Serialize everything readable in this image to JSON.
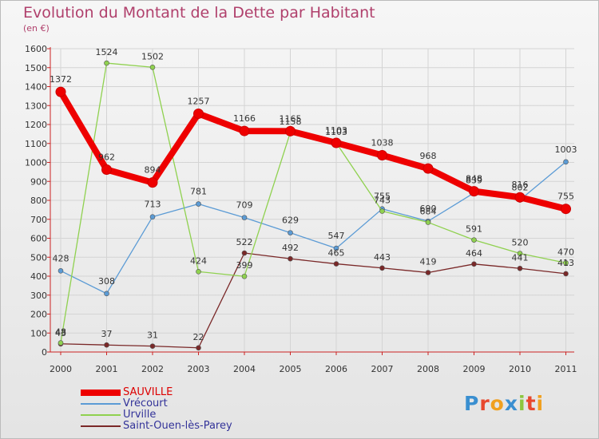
{
  "title": "Evolution du Montant de la Dette par Habitant",
  "subtitle": "(en €)",
  "logo": {
    "letters": [
      "P",
      "r",
      "o",
      "x",
      "i",
      "t",
      "i"
    ],
    "colors": [
      "#3a8fd0",
      "#e8482e",
      "#f0a020",
      "#3a8fd0",
      "#8cc63f",
      "#e8482e",
      "#f0a020"
    ]
  },
  "chart_data": {
    "type": "line",
    "title": "Evolution du Montant de la Dette par Habitant",
    "ylabel": "(en €)",
    "xlabel": "",
    "ylim": [
      0,
      1600
    ],
    "y_ticks": [
      0,
      100,
      200,
      300,
      400,
      500,
      600,
      700,
      800,
      900,
      1000,
      1100,
      1200,
      1300,
      1400,
      1500,
      1600
    ],
    "grid": true,
    "legend": "bottom-left",
    "x": [
      "2000",
      "2001",
      "2002",
      "2003",
      "2004",
      "2005",
      "2006",
      "2007",
      "2008",
      "2009",
      "2010",
      "2011"
    ],
    "series": [
      {
        "name": "SAUVILLE",
        "color": "#ee0000",
        "values": [
          1372,
          962,
          894,
          1257,
          1166,
          1165,
          1103,
          1038,
          968,
          848,
          816,
          755
        ]
      },
      {
        "name": "Vrécourt",
        "color": "#5b9bd5",
        "values": [
          428,
          308,
          713,
          781,
          709,
          629,
          547,
          755,
          690,
          839,
          802,
          1003
        ]
      },
      {
        "name": "Urville",
        "color": "#8fd14f",
        "values": [
          48,
          1524,
          1502,
          424,
          399,
          1158,
          1103,
          743,
          684,
          591,
          520,
          470
        ]
      },
      {
        "name": "Saint-Ouen-lès-Parey",
        "color": "#7a2828",
        "values": [
          43,
          37,
          31,
          22,
          522,
          492,
          465,
          443,
          419,
          464,
          441,
          413
        ]
      }
    ]
  }
}
